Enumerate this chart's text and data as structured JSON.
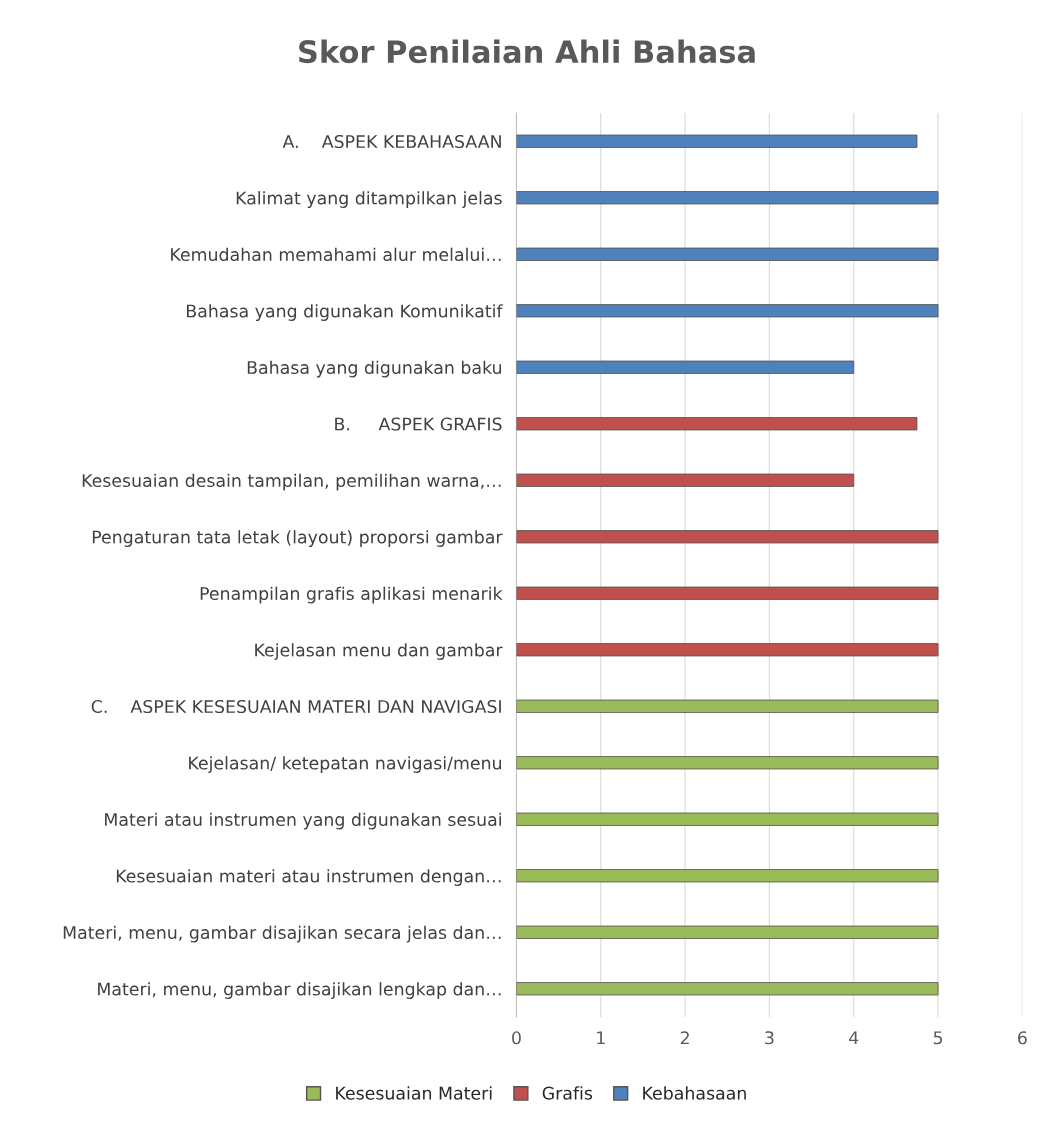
{
  "chart_data": {
    "type": "bar",
    "orientation": "horizontal",
    "stacked": true,
    "title": "Skor Penilaian Ahli Bahasa",
    "categories": [
      "A.    ASPEK KEBAHASAAN",
      "Kalimat yang ditampilkan jelas",
      "Kemudahan memahami alur melalui…",
      "Bahasa yang digunakan Komunikatif",
      "Bahasa yang digunakan baku",
      "B.     ASPEK GRAFIS",
      "Kesesuaian desain tampilan, pemilihan warna,…",
      "Pengaturan tata letak (layout) proporsi gambar",
      "Penampilan grafis aplikasi menarik",
      "Kejelasan menu dan gambar",
      "C.    ASPEK KESESUAIAN MATERI DAN NAVIGASI",
      "Kejelasan/ ketepatan navigasi/menu",
      "Materi atau instrumen yang digunakan sesuai",
      "Kesesuaian materi atau instrumen dengan…",
      "Materi, menu, gambar disajikan secara jelas dan…",
      "Materi, menu, gambar disajikan lengkap dan…"
    ],
    "series": [
      {
        "name": "Kesesuaian Materi",
        "color": "#9bbb59",
        "values": [
          null,
          null,
          null,
          null,
          null,
          null,
          null,
          null,
          null,
          null,
          5,
          5,
          5,
          5,
          5,
          5
        ]
      },
      {
        "name": "Grafis",
        "color": "#c0504d",
        "values": [
          null,
          null,
          null,
          null,
          null,
          4.75,
          4,
          5,
          5,
          5,
          null,
          null,
          null,
          null,
          null,
          null
        ]
      },
      {
        "name": "Kebahasaan",
        "color": "#4f81bd",
        "values": [
          4.75,
          5,
          5,
          5,
          4,
          null,
          null,
          null,
          null,
          null,
          null,
          null,
          null,
          null,
          null,
          null
        ]
      }
    ],
    "xlim": [
      0,
      6
    ],
    "xticks": [
      0,
      1,
      2,
      3,
      4,
      5,
      6
    ],
    "grid": "x",
    "legend": "bottom"
  }
}
